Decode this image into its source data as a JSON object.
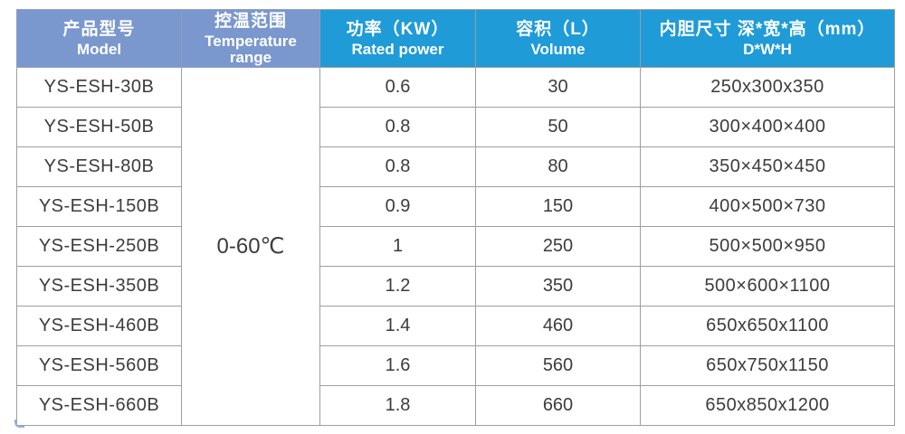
{
  "chart_data": {
    "type": "table",
    "columns_zh": [
      "产品型号",
      "控温范围",
      "功率（KW）",
      "容积（L）",
      "内胆尺寸 深*宽*高（mm）"
    ],
    "columns_en": [
      "Model",
      "Temperature range",
      "Rated power",
      "Volume",
      "D*W*H"
    ],
    "temperature_range": "0-60℃",
    "rows": [
      [
        "YS-ESH-30B",
        "0.6",
        "30",
        "250x300x350"
      ],
      [
        "YS-ESH-50B",
        "0.8",
        "50",
        "300×400×400"
      ],
      [
        "YS-ESH-80B",
        "0.8",
        "80",
        "350×450×450"
      ],
      [
        "YS-ESH-150B",
        "0.9",
        "150",
        "400×500×730"
      ],
      [
        "YS-ESH-250B",
        "1",
        "250",
        "500×500×950"
      ],
      [
        "YS-ESH-350B",
        "1.2",
        "350",
        "500×600×1100"
      ],
      [
        "YS-ESH-460B",
        "1.4",
        "460",
        "650x650x1100"
      ],
      [
        "YS-ESH-560B",
        "1.6",
        "560",
        "650x750x1150"
      ],
      [
        "YS-ESH-660B",
        "1.8",
        "660",
        "650x850x1200"
      ]
    ],
    "layout_hints": {
      "merged_column": "控温范围 Temperature range spans all 9 rows",
      "header_rows": 1,
      "grid": "on"
    }
  },
  "colors": {
    "header_muted_blue": "#7a97ce",
    "header_bright_blue": "#1f9bd7",
    "grid_border": "#9e9e9e",
    "header_text": "#ffffff",
    "body_text": "#3c3c3c",
    "background": "#ffffff"
  }
}
